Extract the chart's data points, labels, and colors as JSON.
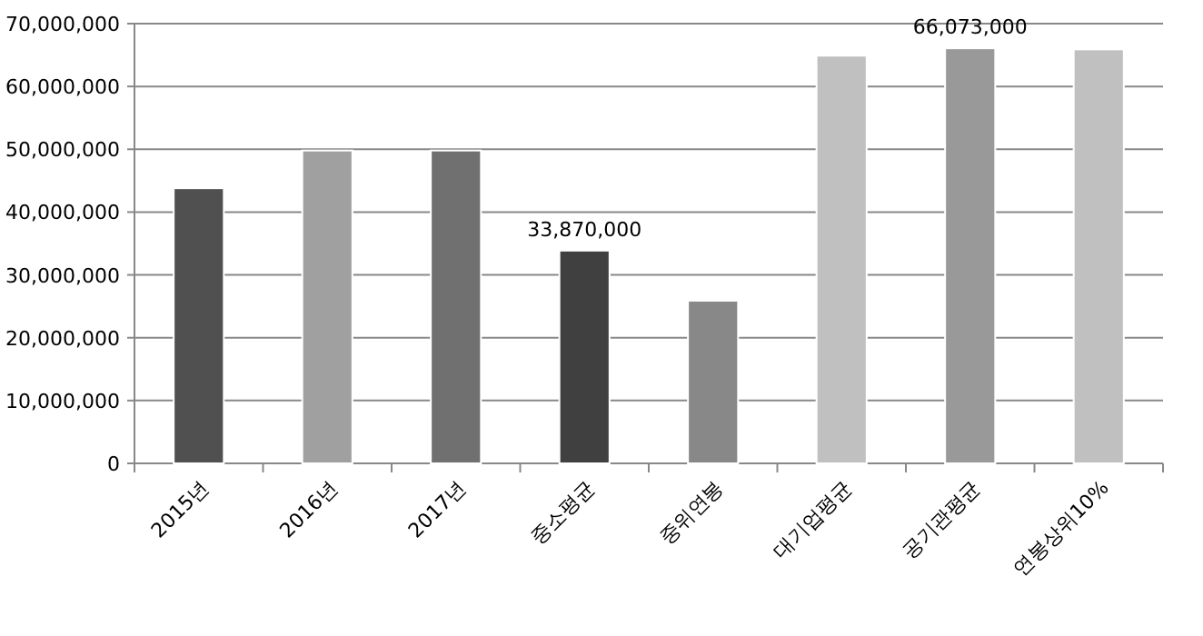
{
  "chart_data": {
    "type": "bar",
    "categories": [
      "2015년",
      "2016년",
      "2017년",
      "중소평균",
      "중위연봉",
      "대기업평균",
      "공기관평균",
      "연봉상위10%"
    ],
    "values": [
      43800000,
      49800000,
      49800000,
      33870000,
      25900000,
      64900000,
      66073000,
      65900000
    ],
    "colors": [
      "#505050",
      "#a0a0a0",
      "#707070",
      "#404040",
      "#888888",
      "#c0c0c0",
      "#999999",
      "#c0c0c0"
    ],
    "value_labels": [
      null,
      null,
      null,
      "33,870,000",
      null,
      null,
      "66,073,000",
      null
    ],
    "ylim": [
      0,
      70000000
    ],
    "yticks": [
      0,
      {
        "value": 10000000,
        "label": "10,000,000"
      },
      {
        "value": 20000000,
        "label": "20,000,000"
      },
      {
        "value": 30000000,
        "label": "30,000,000"
      },
      {
        "value": 40000000,
        "label": "40,000,000"
      },
      {
        "value": 50000000,
        "label": "50,000,000"
      },
      {
        "value": 60000000,
        "label": "60,000,000"
      },
      {
        "value": 70000000,
        "label": "70,000,000"
      }
    ],
    "grid": "y"
  }
}
